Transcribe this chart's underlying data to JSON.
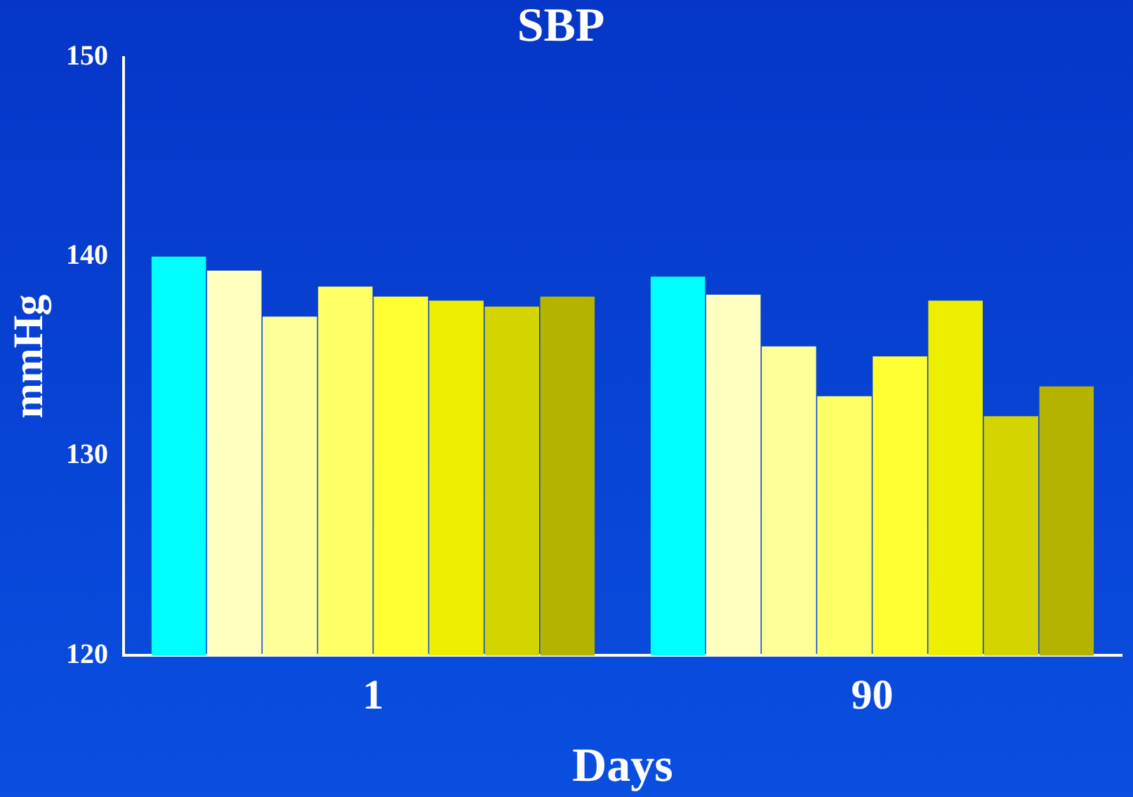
{
  "chart_data": {
    "type": "bar",
    "title": "SBP",
    "xlabel": "Days",
    "ylabel": "mmHg",
    "categories": [
      "1",
      "90"
    ],
    "series": [
      {
        "color": "#00ffff",
        "values": [
          140.0,
          139.0
        ]
      },
      {
        "color": "#ffffc0",
        "values": [
          139.3,
          138.1
        ]
      },
      {
        "color": "#ffff99",
        "values": [
          137.0,
          135.5
        ]
      },
      {
        "color": "#ffff66",
        "values": [
          138.5,
          133.0
        ]
      },
      {
        "color": "#ffff33",
        "values": [
          138.0,
          135.0
        ]
      },
      {
        "color": "#eeee00",
        "values": [
          137.8,
          137.8
        ]
      },
      {
        "color": "#d4d400",
        "values": [
          137.5,
          132.0
        ]
      },
      {
        "color": "#b3b300",
        "values": [
          138.0,
          133.5
        ]
      }
    ],
    "ylim": [
      120,
      150
    ],
    "yticks": [
      120,
      130,
      140,
      150
    ],
    "grid": false,
    "legend": false
  }
}
